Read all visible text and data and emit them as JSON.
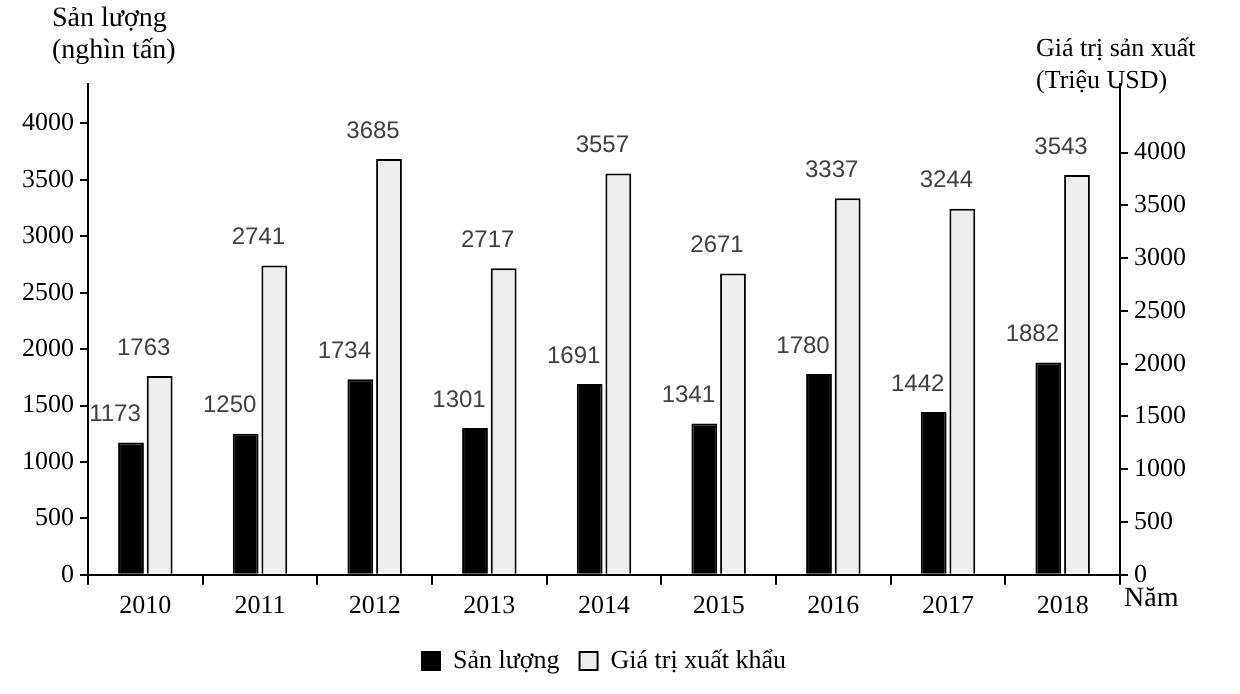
{
  "chart_data": {
    "type": "bar",
    "ylabel": "Sản lượng (nghìn tấn)",
    "y2label": "Giá trị sản xuất (Triệu USD)",
    "xlabel": "Năm",
    "categories": [
      "2010",
      "2011",
      "2012",
      "2013",
      "2014",
      "2015",
      "2016",
      "2017",
      "2018"
    ],
    "series": [
      {
        "name": "Sản lượng",
        "color": "#000000",
        "values": [
          1173,
          1250,
          1734,
          1301,
          1691,
          1341,
          1780,
          1442,
          1882
        ]
      },
      {
        "name": "Giá trị xuất khẩu",
        "color": "#eeeeee",
        "values": [
          1763,
          2741,
          3685,
          2717,
          3557,
          2671,
          3337,
          3244,
          3543
        ]
      }
    ],
    "ylim": [
      0,
      4350
    ],
    "yticks": [
      0,
      500,
      1000,
      1500,
      2000,
      2500,
      3000,
      3500,
      4000
    ],
    "y2lim": [
      0,
      4650
    ],
    "y2ticks": [
      0,
      500,
      1000,
      1500,
      2000,
      2500,
      3000,
      3500,
      4000
    ],
    "data_labels": true,
    "legend": "bottom",
    "grid": false
  }
}
